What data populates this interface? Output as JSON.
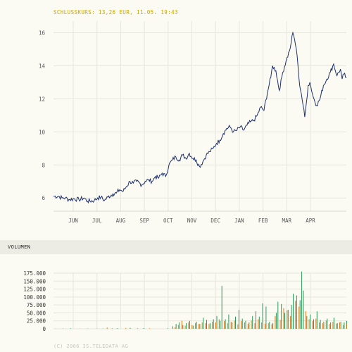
{
  "header": {
    "close_text": "SCHLUSSKURS: 13,26 EUR, 11.05. 19:43"
  },
  "volume_header": {
    "label": "VOLUMEN"
  },
  "footer": {
    "copyright": "(C) 2006 IS.TELEDATA AG"
  },
  "colors": {
    "background": "#fbfbf3",
    "price_line": "#1c2f6e",
    "grid": "#e6e6dc",
    "volume_a": "#2a9a5a",
    "volume_b": "#e57a1c",
    "header_text": "#c9a400"
  },
  "chart_data": [
    {
      "type": "line",
      "title": "SCHLUSSKURS: 13,26 EUR, 11.05. 19:43",
      "categories": [
        "JUN",
        "JUL",
        "AUG",
        "SEP",
        "OCT",
        "NOV",
        "DEC",
        "JAN",
        "FEB",
        "MAR",
        "APR"
      ],
      "yticks": [
        6,
        8,
        10,
        12,
        14,
        16
      ],
      "ylim": [
        5.2,
        16.7
      ],
      "x_index_range": [
        0,
        345
      ],
      "grid": true,
      "series": [
        {
          "values_sampled_daily_index": [
            [
              0,
              6.1
            ],
            [
              6,
              6.1
            ],
            [
              10,
              6.0
            ],
            [
              14,
              6.0
            ],
            [
              18,
              5.9
            ],
            [
              24,
              5.95
            ],
            [
              30,
              5.9
            ],
            [
              36,
              6.0
            ],
            [
              40,
              5.8
            ],
            [
              48,
              5.85
            ],
            [
              52,
              6.0
            ],
            [
              56,
              6.05
            ],
            [
              60,
              5.85
            ],
            [
              64,
              6.05
            ],
            [
              70,
              6.25
            ],
            [
              74,
              6.3
            ],
            [
              78,
              6.5
            ],
            [
              82,
              6.4
            ],
            [
              86,
              6.7
            ],
            [
              90,
              7.0
            ],
            [
              94,
              6.9
            ],
            [
              98,
              7.0
            ],
            [
              104,
              6.8
            ],
            [
              108,
              7.0
            ],
            [
              112,
              7.1
            ],
            [
              116,
              7.0
            ],
            [
              120,
              7.3
            ],
            [
              124,
              7.2
            ],
            [
              128,
              7.5
            ],
            [
              132,
              7.3
            ],
            [
              136,
              8.0
            ],
            [
              140,
              8.3
            ],
            [
              144,
              8.5
            ],
            [
              148,
              8.3
            ],
            [
              152,
              8.6
            ],
            [
              156,
              8.4
            ],
            [
              160,
              8.7
            ],
            [
              164,
              8.4
            ],
            [
              168,
              8.3
            ],
            [
              172,
              7.9
            ],
            [
              176,
              8.2
            ],
            [
              180,
              8.6
            ],
            [
              184,
              8.8
            ],
            [
              188,
              9.0
            ],
            [
              192,
              9.3
            ],
            [
              196,
              9.5
            ],
            [
              200,
              9.9
            ],
            [
              204,
              10.2
            ],
            [
              208,
              10.3
            ],
            [
              212,
              10.0
            ],
            [
              216,
              10.1
            ],
            [
              220,
              10.3
            ],
            [
              224,
              10.1
            ],
            [
              228,
              10.4
            ],
            [
              232,
              10.6
            ],
            [
              236,
              10.7
            ],
            [
              240,
              11.0
            ],
            [
              244,
              11.5
            ],
            [
              248,
              11.3
            ],
            [
              252,
              12.4
            ],
            [
              256,
              13.3
            ],
            [
              258,
              14.0
            ],
            [
              262,
              13.7
            ],
            [
              266,
              12.5
            ],
            [
              270,
              13.6
            ],
            [
              274,
              14.3
            ],
            [
              278,
              14.9
            ],
            [
              280,
              15.4
            ],
            [
              282,
              16.0
            ],
            [
              284,
              15.6
            ],
            [
              286,
              15.0
            ],
            [
              288,
              14.0
            ],
            [
              290,
              12.8
            ],
            [
              292,
              12.3
            ],
            [
              294,
              11.6
            ],
            [
              296,
              10.9
            ],
            [
              298,
              11.8
            ],
            [
              300,
              12.8
            ],
            [
              302,
              13.0
            ],
            [
              306,
              12.1
            ],
            [
              310,
              11.6
            ],
            [
              314,
              12.0
            ],
            [
              318,
              12.8
            ],
            [
              322,
              13.2
            ],
            [
              326,
              13.6
            ],
            [
              330,
              14.1
            ],
            [
              334,
              13.4
            ],
            [
              338,
              13.8
            ],
            [
              340,
              13.2
            ],
            [
              342,
              13.5
            ],
            [
              345,
              13.26
            ]
          ]
        }
      ]
    },
    {
      "type": "bar",
      "title": "VOLUMEN",
      "yticks": [
        "0",
        "25.000",
        "50.000",
        "75.000",
        "100.000",
        "125.000",
        "150.000",
        "175.000"
      ],
      "ylim": [
        0,
        175000
      ],
      "x_index_range": [
        0,
        345
      ],
      "series": [
        {
          "values_sampled_daily_index": [
            [
              2,
              500
            ],
            [
              20,
              1500
            ],
            [
              40,
              800
            ],
            [
              58,
              600
            ],
            [
              75,
              2000
            ],
            [
              90,
              3000
            ],
            [
              106,
              2500
            ],
            [
              134,
              1500
            ],
            [
              140,
              8000
            ],
            [
              144,
              15000
            ],
            [
              148,
              20000
            ],
            [
              152,
              12000
            ],
            [
              156,
              18000
            ],
            [
              160,
              25000
            ],
            [
              164,
              10000
            ],
            [
              168,
              22000
            ],
            [
              172,
              15000
            ],
            [
              176,
              35000
            ],
            [
              180,
              28000
            ],
            [
              184,
              18000
            ],
            [
              188,
              30000
            ],
            [
              192,
              40000
            ],
            [
              196,
              25000
            ],
            [
              198,
              135000
            ],
            [
              202,
              30000
            ],
            [
              206,
              45000
            ],
            [
              210,
              20000
            ],
            [
              214,
              38000
            ],
            [
              218,
              60000
            ],
            [
              222,
              32000
            ],
            [
              226,
              25000
            ],
            [
              230,
              20000
            ],
            [
              234,
              40000
            ],
            [
              238,
              55000
            ],
            [
              242,
              38000
            ],
            [
              246,
              80000
            ],
            [
              250,
              70000
            ],
            [
              254,
              22000
            ],
            [
              258,
              18000
            ],
            [
              262,
              50000
            ],
            [
              264,
              85000
            ],
            [
              268,
              78000
            ],
            [
              272,
              50000
            ],
            [
              276,
              60000
            ],
            [
              280,
              75000
            ],
            [
              282,
              110000
            ],
            [
              286,
              105000
            ],
            [
              290,
              90000
            ],
            [
              292,
              180000
            ],
            [
              294,
              120000
            ],
            [
              298,
              40000
            ],
            [
              302,
              45000
            ],
            [
              306,
              30000
            ],
            [
              310,
              55000
            ],
            [
              314,
              28000
            ],
            [
              318,
              22000
            ],
            [
              322,
              32000
            ],
            [
              326,
              20000
            ],
            [
              330,
              35000
            ],
            [
              334,
              18000
            ],
            [
              338,
              22000
            ],
            [
              342,
              20000
            ],
            [
              345,
              25000
            ]
          ]
        },
        {
          "values_sampled_daily_index": [
            [
              10,
              1000
            ],
            [
              30,
              600
            ],
            [
              50,
              700
            ],
            [
              62,
              4000
            ],
            [
              68,
              1800
            ],
            [
              84,
              2500
            ],
            [
              98,
              2000
            ],
            [
              112,
              1500
            ],
            [
              142,
              5000
            ],
            [
              146,
              12000
            ],
            [
              150,
              25000
            ],
            [
              154,
              10000
            ],
            [
              158,
              20000
            ],
            [
              162,
              12000
            ],
            [
              166,
              18000
            ],
            [
              170,
              15000
            ],
            [
              174,
              20000
            ],
            [
              178,
              18000
            ],
            [
              182,
              15000
            ],
            [
              186,
              22000
            ],
            [
              190,
              20000
            ],
            [
              194,
              30000
            ],
            [
              200,
              24000
            ],
            [
              204,
              18000
            ],
            [
              208,
              22000
            ],
            [
              212,
              26000
            ],
            [
              216,
              14000
            ],
            [
              220,
              24000
            ],
            [
              224,
              20000
            ],
            [
              228,
              15000
            ],
            [
              232,
              26000
            ],
            [
              236,
              18000
            ],
            [
              240,
              30000
            ],
            [
              244,
              20000
            ],
            [
              248,
              16000
            ],
            [
              252,
              18000
            ],
            [
              256,
              14000
            ],
            [
              260,
              40000
            ],
            [
              266,
              28000
            ],
            [
              270,
              65000
            ],
            [
              274,
              58000
            ],
            [
              278,
              40000
            ],
            [
              284,
              88000
            ],
            [
              288,
              70000
            ],
            [
              296,
              55000
            ],
            [
              300,
              30000
            ],
            [
              304,
              24000
            ],
            [
              308,
              32000
            ],
            [
              312,
              20000
            ],
            [
              316,
              18000
            ],
            [
              320,
              26000
            ],
            [
              324,
              15000
            ],
            [
              328,
              22000
            ],
            [
              332,
              16000
            ],
            [
              336,
              20000
            ],
            [
              340,
              12000
            ],
            [
              344,
              18000
            ]
          ]
        }
      ]
    }
  ]
}
